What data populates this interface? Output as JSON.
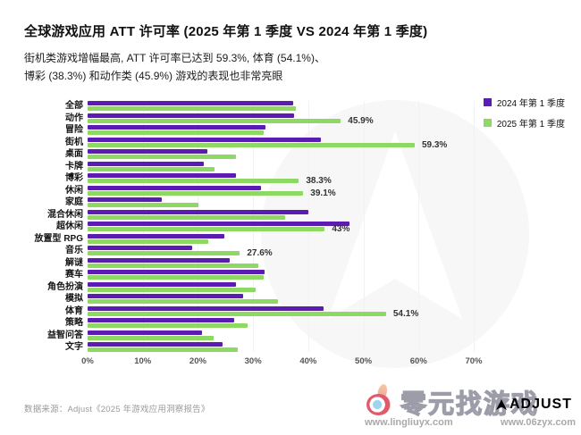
{
  "header": {
    "title": "全球游戏应用 ATT 许可率 (2025 年第 1 季度 VS 2024 年第 1 季度)",
    "subtitle_line1": "街机类游戏增幅最高, ATT 许可率已达到 59.3%, 体育 (54.1%)、",
    "subtitle_line2": "博彩 (38.3%) 和动作类 (45.9%) 游戏的表现也非常亮眼"
  },
  "colors": {
    "purple": "#5C1BB2",
    "green": "#8DD964",
    "grid": "#f2f2f2"
  },
  "chart_data": {
    "type": "bar",
    "orientation": "horizontal",
    "title": "全球游戏应用 ATT 许可率 (2025 年第 1 季度 VS 2024 年第 1 季度)",
    "xlabel": "",
    "ylabel": "",
    "xlim": [
      0,
      70
    ],
    "x_ticks": [
      "0%",
      "10%",
      "20%",
      "30%",
      "40%",
      "50%",
      "60%",
      "70%"
    ],
    "grid": "vertical-faint",
    "legend_position": "top-right",
    "categories": [
      "全部",
      "动作",
      "冒险",
      "街机",
      "桌面",
      "卡牌",
      "博彩",
      "休闲",
      "家庭",
      "混合休闲",
      "超休闲",
      "放置型 RPG",
      "音乐",
      "解谜",
      "赛车",
      "角色扮演",
      "模拟",
      "体育",
      "策略",
      "益智问答",
      "文字"
    ],
    "series": [
      {
        "name": "2024 年第 1 季度",
        "color": "#5C1BB2",
        "values": [
          37.3,
          37.4,
          32.2,
          42.3,
          21.7,
          21.1,
          26.9,
          31.4,
          13.5,
          40.0,
          47.4,
          24.8,
          18.9,
          25.8,
          32.1,
          26.9,
          28.2,
          42.7,
          26.6,
          20.8,
          24.4
        ]
      },
      {
        "name": "2025 年第 1 季度",
        "color": "#8DD964",
        "values": [
          37.8,
          45.9,
          31.9,
          59.3,
          26.9,
          23.0,
          38.3,
          39.1,
          20.1,
          35.8,
          43.0,
          21.8,
          27.6,
          31.0,
          31.9,
          30.5,
          34.5,
          54.1,
          29.0,
          22.9,
          27.2
        ]
      }
    ],
    "data_labels_2025": [
      "",
      "45.9%",
      "",
      "59.3%",
      "",
      "",
      "38.3%",
      "39.1%",
      "",
      "",
      "43%",
      "",
      "27.6%",
      "",
      "",
      "",
      "",
      "54.1%",
      "",
      "",
      ""
    ]
  },
  "footer": {
    "source": "数据来源：Adjust《2025 年游戏应用洞察报告》"
  },
  "watermark": {
    "site_name": "零元找游戏",
    "url_left": "www.lingliuyx.com",
    "url_right": "www.06zyx.com",
    "adjust_logo": "ADJUST"
  }
}
